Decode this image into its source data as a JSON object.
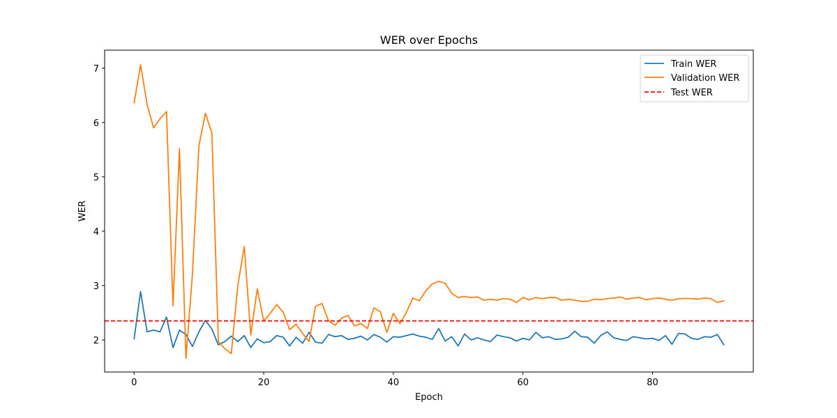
{
  "chart_data": {
    "type": "line",
    "title": "WER over Epochs",
    "xlabel": "Epoch",
    "ylabel": "WER",
    "xlim": [
      -4.55,
      95.55
    ],
    "ylim": [
      1.41,
      7.33
    ],
    "xticks": [
      0,
      20,
      40,
      60,
      80
    ],
    "yticks": [
      2,
      3,
      4,
      5,
      6,
      7
    ],
    "grid": false,
    "legend_position": "upper right",
    "series": [
      {
        "name": "Train WER",
        "color": "#1f77b4",
        "style": "solid",
        "x": [
          0,
          1,
          2,
          3,
          4,
          5,
          6,
          7,
          8,
          9,
          10,
          11,
          12,
          13,
          14,
          15,
          16,
          17,
          18,
          19,
          20,
          21,
          22,
          23,
          24,
          25,
          26,
          27,
          28,
          29,
          30,
          31,
          32,
          33,
          34,
          35,
          36,
          37,
          38,
          39,
          40,
          41,
          42,
          43,
          44,
          45,
          46,
          47,
          48,
          49,
          50,
          51,
          52,
          53,
          54,
          55,
          56,
          57,
          58,
          59,
          60,
          61,
          62,
          63,
          64,
          65,
          66,
          67,
          68,
          69,
          70,
          71,
          72,
          73,
          74,
          75,
          76,
          77,
          78,
          79,
          80,
          81,
          82,
          83,
          84,
          85,
          86,
          87,
          88,
          89,
          90,
          91
        ],
        "values": [
          2.02,
          2.89,
          2.15,
          2.18,
          2.15,
          2.42,
          1.86,
          2.18,
          2.1,
          1.88,
          2.15,
          2.36,
          2.2,
          1.91,
          1.97,
          2.07,
          1.97,
          2.08,
          1.86,
          2.02,
          1.95,
          1.97,
          2.08,
          2.05,
          1.89,
          2.05,
          1.94,
          2.14,
          1.96,
          1.94,
          2.1,
          2.06,
          2.08,
          2.01,
          2.03,
          2.07,
          2.0,
          2.1,
          2.05,
          1.96,
          2.06,
          2.05,
          2.08,
          2.11,
          2.07,
          2.05,
          2.01,
          2.21,
          1.98,
          2.06,
          1.89,
          2.11,
          2.0,
          2.04,
          2.0,
          1.97,
          2.09,
          2.06,
          2.04,
          1.98,
          2.03,
          2.0,
          2.14,
          2.04,
          2.06,
          2.01,
          2.02,
          2.05,
          2.16,
          2.06,
          2.05,
          1.94,
          2.08,
          2.15,
          2.04,
          2.01,
          1.99,
          2.06,
          2.04,
          2.02,
          2.03,
          1.99,
          2.08,
          1.92,
          2.12,
          2.11,
          2.03,
          2.01,
          2.06,
          2.05,
          2.1,
          1.91
        ]
      },
      {
        "name": "Validation WER",
        "color": "#ff7f0e",
        "style": "solid",
        "x": [
          0,
          1,
          2,
          3,
          4,
          5,
          6,
          7,
          8,
          9,
          10,
          11,
          12,
          13,
          14,
          15,
          16,
          17,
          18,
          19,
          20,
          21,
          22,
          23,
          24,
          25,
          26,
          27,
          28,
          29,
          30,
          31,
          32,
          33,
          34,
          35,
          36,
          37,
          38,
          39,
          40,
          41,
          42,
          43,
          44,
          45,
          46,
          47,
          48,
          49,
          50,
          51,
          52,
          53,
          54,
          55,
          56,
          57,
          58,
          59,
          60,
          61,
          62,
          63,
          64,
          65,
          66,
          67,
          68,
          69,
          70,
          71,
          72,
          73,
          74,
          75,
          76,
          77,
          78,
          79,
          80,
          81,
          82,
          83,
          84,
          85,
          86,
          87,
          88,
          89,
          90,
          91
        ],
        "values": [
          6.36,
          7.06,
          6.34,
          5.9,
          6.07,
          6.2,
          2.63,
          5.52,
          1.66,
          3.21,
          5.57,
          6.17,
          5.81,
          1.97,
          1.84,
          1.75,
          3.0,
          3.72,
          2.09,
          2.94,
          2.35,
          2.49,
          2.65,
          2.51,
          2.19,
          2.29,
          2.12,
          1.97,
          2.62,
          2.67,
          2.35,
          2.27,
          2.4,
          2.45,
          2.26,
          2.3,
          2.21,
          2.59,
          2.52,
          2.14,
          2.49,
          2.3,
          2.5,
          2.77,
          2.72,
          2.9,
          3.03,
          3.08,
          3.04,
          2.86,
          2.78,
          2.8,
          2.78,
          2.79,
          2.73,
          2.75,
          2.73,
          2.76,
          2.75,
          2.69,
          2.78,
          2.74,
          2.78,
          2.76,
          2.78,
          2.78,
          2.73,
          2.75,
          2.73,
          2.71,
          2.71,
          2.75,
          2.74,
          2.76,
          2.77,
          2.79,
          2.75,
          2.77,
          2.78,
          2.74,
          2.76,
          2.77,
          2.75,
          2.73,
          2.76,
          2.76,
          2.76,
          2.75,
          2.77,
          2.76,
          2.69,
          2.72
        ]
      },
      {
        "name": "Test WER",
        "color": "#ff0000",
        "style": "dashed",
        "value": 2.35
      }
    ]
  }
}
